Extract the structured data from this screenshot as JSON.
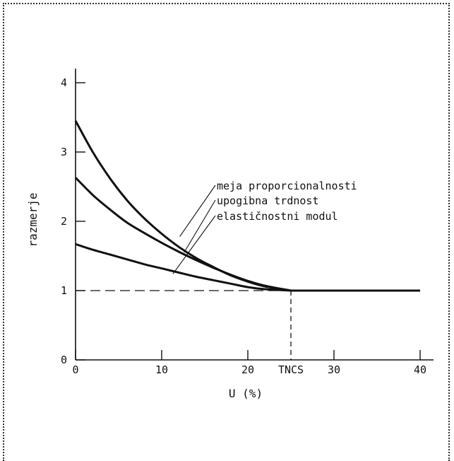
{
  "chart_data": {
    "type": "line",
    "title": "",
    "xlabel": "U (%)",
    "ylabel": "razmerje",
    "xlim": [
      0,
      41
    ],
    "ylim": [
      0,
      4
    ],
    "x_ticks": [
      0,
      10,
      20,
      30,
      40
    ],
    "x_tick_labels": [
      "0",
      "10",
      "20",
      "30",
      "40"
    ],
    "y_ticks": [
      0,
      1,
      2,
      3,
      4
    ],
    "y_tick_labels": [
      "0",
      "1",
      "2",
      "3",
      "4"
    ],
    "special_x_tick": {
      "x": 25,
      "label": "TNCS"
    },
    "reference_line": {
      "y": 1,
      "x_to": 25,
      "style": "dashed"
    },
    "reference_vline": {
      "x": 25,
      "y_to": 1,
      "style": "dashed"
    },
    "series": [
      {
        "name": "meja proporcionalnosti",
        "x": [
          0,
          2,
          4,
          6,
          8,
          10,
          12,
          14,
          16,
          18,
          20,
          22,
          25,
          40
        ],
        "y": [
          3.45,
          3.0,
          2.62,
          2.3,
          2.04,
          1.82,
          1.63,
          1.47,
          1.34,
          1.22,
          1.13,
          1.06,
          1.0,
          1.0
        ]
      },
      {
        "name": "upogibna trdnost",
        "x": [
          0,
          2,
          4,
          6,
          8,
          10,
          12,
          14,
          16,
          18,
          20,
          22,
          25,
          40
        ],
        "y": [
          2.63,
          2.38,
          2.17,
          1.98,
          1.83,
          1.69,
          1.56,
          1.44,
          1.33,
          1.23,
          1.14,
          1.07,
          1.0,
          1.0
        ]
      },
      {
        "name": "elastičnostni modul",
        "x": [
          0,
          2,
          4,
          6,
          8,
          10,
          12,
          14,
          16,
          18,
          20,
          22,
          25,
          40
        ],
        "y": [
          1.67,
          1.59,
          1.52,
          1.45,
          1.38,
          1.32,
          1.26,
          1.2,
          1.15,
          1.1,
          1.05,
          1.02,
          1.0,
          1.0
        ]
      }
    ]
  }
}
